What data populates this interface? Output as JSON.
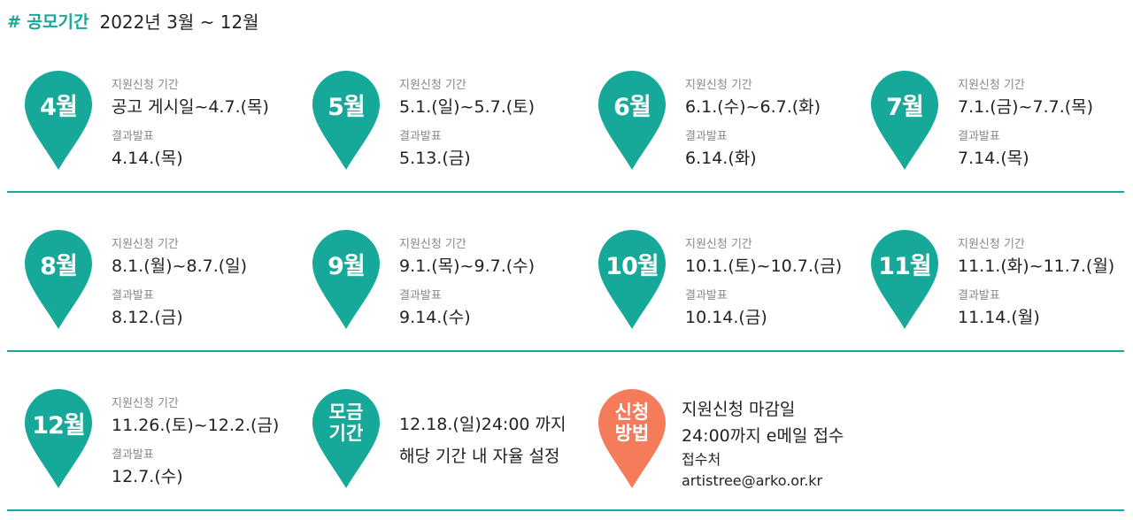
{
  "header": {
    "tag": "# 공모기간",
    "period": "2022년 3월 ~ 12월"
  },
  "labels": {
    "apply_period": "지원신청 기간",
    "result": "결과발표"
  },
  "colors": {
    "teal": "#16a899",
    "orange": "#f47c5a"
  },
  "months": [
    {
      "label": "4월",
      "apply": "공고 게시일~4.7.(목)",
      "result": "4.14.(목)"
    },
    {
      "label": "5월",
      "apply": "5.1.(일)~5.7.(토)",
      "result": "5.13.(금)"
    },
    {
      "label": "6월",
      "apply": "6.1.(수)~6.7.(화)",
      "result": "6.14.(화)"
    },
    {
      "label": "7월",
      "apply": "7.1.(금)~7.7.(목)",
      "result": "7.14.(목)"
    },
    {
      "label": "8월",
      "apply": "8.1.(월)~8.7.(일)",
      "result": "8.12.(금)"
    },
    {
      "label": "9월",
      "apply": "9.1.(목)~9.7.(수)",
      "result": "9.14.(수)"
    },
    {
      "label": "10월",
      "apply": "10.1.(토)~10.7.(금)",
      "result": "10.14.(금)"
    },
    {
      "label": "11월",
      "apply": "11.1.(화)~11.7.(월)",
      "result": "11.14.(월)"
    },
    {
      "label": "12월",
      "apply": "11.26.(토)~12.2.(금)",
      "result": "12.7.(수)"
    }
  ],
  "fundraising": {
    "label": "모금\n기간",
    "line1": "12.18.(일)24:00 까지",
    "line2": "해당 기간 내 자율 설정"
  },
  "apply_method": {
    "label": "신청\n방법",
    "line1": "지원신청 마감일",
    "line2": "24:00까지 e메일 접수",
    "line3": "접수처",
    "line4": "artistree@arko.or.kr"
  }
}
